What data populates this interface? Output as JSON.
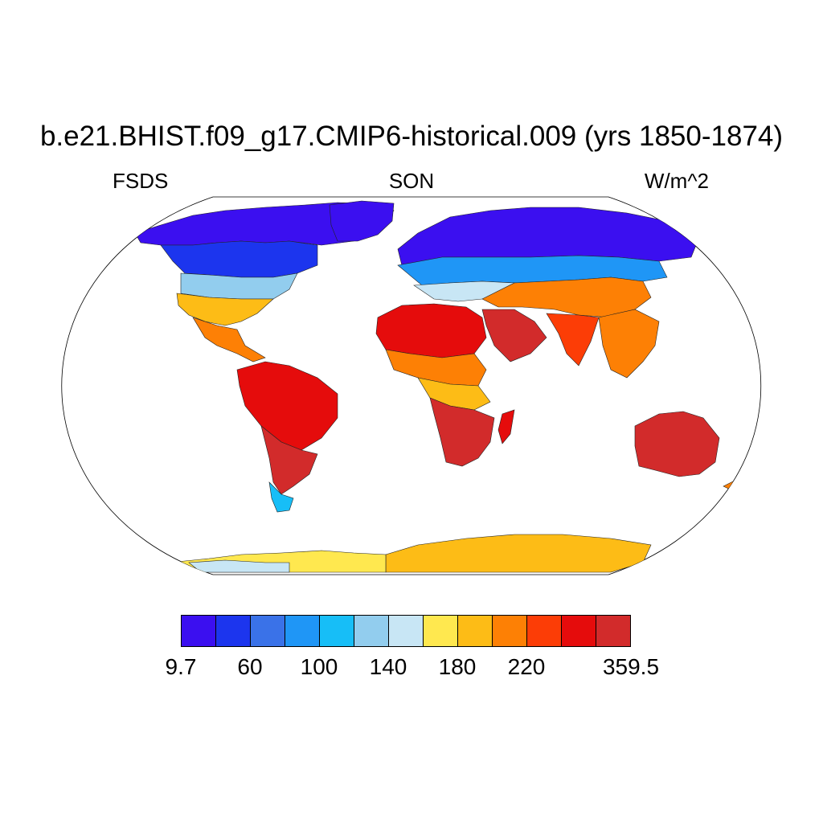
{
  "title": "b.e21.BHIST.f09_g17.CMIP6-historical.009 (yrs 1850-1874)",
  "left_label": "FSDS",
  "center_label": "SON",
  "right_label": "W/m^2",
  "colorbar": {
    "colors": [
      "#3b0ff0",
      "#1c35ee",
      "#3a72e8",
      "#1f96f6",
      "#17bef7",
      "#92cdee",
      "#c8e6f5",
      "#ffe84f",
      "#fdbc16",
      "#fd8005",
      "#fc3d06",
      "#e50c0c",
      "#d22b2b"
    ],
    "tick_labels": [
      "9.7",
      "60",
      "100",
      "140",
      "180",
      "220",
      "359.5"
    ]
  },
  "map": {
    "projection": "Robinson",
    "field": "FSDS",
    "season": "SON",
    "regions": [
      {
        "name": "arctic-north-america",
        "level": 0
      },
      {
        "name": "canada",
        "level": 1
      },
      {
        "name": "northern-usa",
        "level": 5
      },
      {
        "name": "southern-usa",
        "level": 8
      },
      {
        "name": "mexico",
        "level": 9
      },
      {
        "name": "greenland",
        "level": 0
      },
      {
        "name": "northern-eurasia",
        "level": 0
      },
      {
        "name": "central-eurasia",
        "level": 3
      },
      {
        "name": "europe-south",
        "level": 6
      },
      {
        "name": "middle-asia",
        "level": 9
      },
      {
        "name": "sahara",
        "level": 11
      },
      {
        "name": "arabia",
        "level": 12
      },
      {
        "name": "india",
        "level": 10
      },
      {
        "name": "se-asia",
        "level": 9
      },
      {
        "name": "sahel",
        "level": 9
      },
      {
        "name": "central-africa",
        "level": 8
      },
      {
        "name": "southern-africa",
        "level": 12
      },
      {
        "name": "madagascar",
        "level": 11
      },
      {
        "name": "amazon",
        "level": 11
      },
      {
        "name": "south-america-south",
        "level": 12
      },
      {
        "name": "patagonia",
        "level": 4
      },
      {
        "name": "australia",
        "level": 12
      },
      {
        "name": "new-zealand",
        "level": 9
      },
      {
        "name": "antarctica-east",
        "level": 8
      },
      {
        "name": "antarctica-west",
        "level": 7
      },
      {
        "name": "antarctica-coast",
        "level": 6
      }
    ]
  }
}
